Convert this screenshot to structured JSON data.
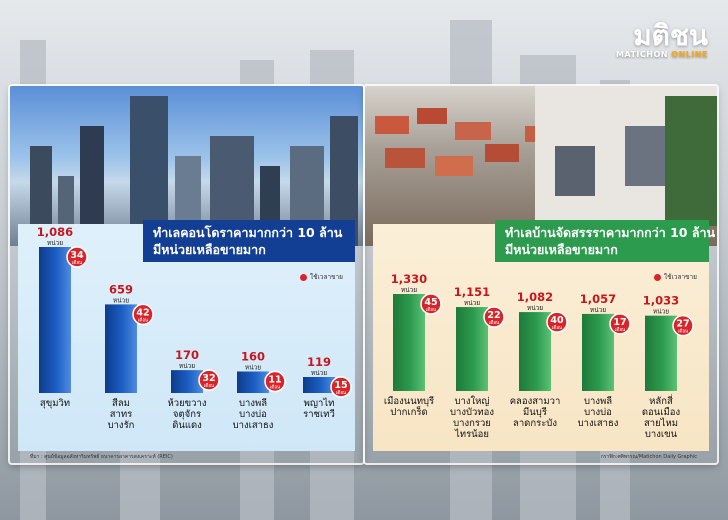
{
  "brand": {
    "name_th": "มติชน",
    "name_en_a": "MATICHON",
    "name_en_b": "ONLINE"
  },
  "legend_label": "ใช้เวลาขาย",
  "chart_data": [
    {
      "type": "bar",
      "title": [
        "ทำเลคอนโดราคามากกว่า 10 ล้าน",
        "มีหน่วยเหลือขายมาก"
      ],
      "unit": "หน่วย",
      "period_unit": "เดือน",
      "categories": [
        [
          "สุขุมวิท"
        ],
        [
          "สีลม",
          "สาทร",
          "บางรัก"
        ],
        [
          "ห้วยขวาง",
          "จตุจักร",
          "ดินแดง"
        ],
        [
          "บางพลี",
          "บางบ่อ",
          "บางเสาธง"
        ],
        [
          "พญาไท",
          "ราชเทวี"
        ]
      ],
      "values": [
        1086,
        659,
        170,
        160,
        119
      ],
      "value_labels": [
        "1,086",
        "659",
        "170",
        "160",
        "119"
      ],
      "months": [
        34,
        42,
        32,
        11,
        15
      ],
      "bar_color": "#1d5fc4",
      "source": "ที่มา : ศูนย์ข้อมูลอสังหาริมทรัพย์ ธนาคารอาคารสงเคราะห์ (REIC)"
    },
    {
      "type": "bar",
      "title": [
        "ทำเลบ้านจัดสรรราคามากกว่า 10 ล้าน",
        "มีหน่วยเหลือขายมาก"
      ],
      "unit": "หน่วย",
      "period_unit": "เดือน",
      "categories": [
        [
          "เมืองนนทบุรี",
          "ปากเกร็ด"
        ],
        [
          "บางใหญ่",
          "บางบัวทอง",
          "บางกรวย",
          "ไทรน้อย"
        ],
        [
          "คลองสามวา",
          "มีนบุรี",
          "ลาดกระบัง"
        ],
        [
          "บางพลี",
          "บางบ่อ",
          "บางเสาธง"
        ],
        [
          "หลักสี่",
          "ดอนเมือง",
          "สายไหม",
          "บางเขน"
        ]
      ],
      "values": [
        1330,
        1151,
        1082,
        1057,
        1033
      ],
      "value_labels": [
        "1,330",
        "1,151",
        "1,082",
        "1,057",
        "1,033"
      ],
      "months": [
        45,
        22,
        40,
        17,
        27
      ],
      "bar_color": "#2d9b4e",
      "source": "กราฟิก:ศศิพรรณ/Matichon Daily Graphic"
    }
  ]
}
